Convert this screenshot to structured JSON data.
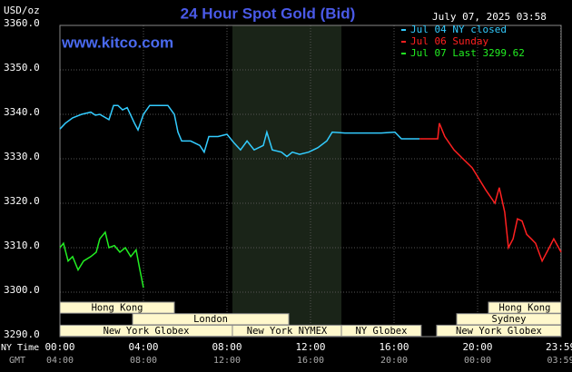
{
  "chart_data": {
    "type": "line",
    "title": "24 Hour Spot Gold (Bid)",
    "y_unit": "USD/oz",
    "timestamp": "July 07, 2025 03:58",
    "watermark": "www.kitco.com",
    "xlim": [
      0,
      24
    ],
    "ylim": [
      3290,
      3360
    ],
    "grid": true,
    "xticks": [
      {
        "value": 0,
        "label": "00:00"
      },
      {
        "value": 4,
        "label": "04:00"
      },
      {
        "value": 8,
        "label": "08:00"
      },
      {
        "value": 12,
        "label": "12:00"
      },
      {
        "value": 16,
        "label": "16:00"
      },
      {
        "value": 20,
        "label": "20:00"
      },
      {
        "value": 23.98,
        "label": "23:59"
      }
    ],
    "x_secondary_labels": [
      "04:00",
      "08:00",
      "12:00",
      "16:00",
      "20:00",
      "00:00",
      "03:59"
    ],
    "x_axis_labels": [
      "NY Time",
      "GMT"
    ],
    "yticks": [
      {
        "value": 3290,
        "label": "3290.0"
      },
      {
        "value": 3300,
        "label": "3300.0"
      },
      {
        "value": 3310,
        "label": "3310.0"
      },
      {
        "value": 3320,
        "label": "3320.0"
      },
      {
        "value": 3330,
        "label": "3330.0"
      },
      {
        "value": 3340,
        "label": "3340.0"
      },
      {
        "value": 3350,
        "label": "3350.0"
      },
      {
        "value": 3360,
        "label": "3360.0"
      }
    ],
    "session_rows": [
      [
        {
          "label": "Hong Kong",
          "start": 0,
          "end": 5.48
        },
        {
          "label": "Hong Kong",
          "start": 20.52,
          "end": 24
        }
      ],
      [
        {
          "label": "London",
          "start": 3.48,
          "end": 10.96
        },
        {
          "label": "Sydney",
          "start": 19,
          "end": 24
        }
      ],
      [
        {
          "label": "New York Globex",
          "start": 0,
          "end": 8.26
        },
        {
          "label": "New York NYMEX",
          "start": 8.26,
          "end": 13.48,
          "shaded": true
        },
        {
          "label": "NY Globex",
          "start": 13.48,
          "end": 17.3
        },
        {
          "label": "New York Globex",
          "start": 18.04,
          "end": 24
        }
      ]
    ],
    "series": [
      {
        "name": "Jul 04 NY closed",
        "color": "#33ccff",
        "x": [
          0,
          0.26,
          0.61,
          1.04,
          1.48,
          1.7,
          1.91,
          2.35,
          2.57,
          2.78,
          3,
          3.22,
          3.57,
          3.74,
          4,
          4.3,
          4.74,
          5.17,
          5.48,
          5.65,
          5.83,
          6.26,
          6.7,
          6.91,
          7.13,
          7.57,
          8,
          8.35,
          8.65,
          8.96,
          9.3,
          9.74,
          9.91,
          10.17,
          10.61,
          10.87,
          11.13,
          11.48,
          11.91,
          12.35,
          12.78,
          13.04,
          13.65,
          14.52,
          15.39,
          16.04,
          16.35,
          17.22
        ],
        "values": [
          3336.7,
          3338,
          3339.2,
          3340,
          3340.5,
          3339.8,
          3340,
          3338.8,
          3342,
          3342,
          3341,
          3341.5,
          3338,
          3336.5,
          3340,
          3342,
          3342,
          3342,
          3340,
          3336,
          3334,
          3334,
          3333,
          3331.5,
          3335,
          3335,
          3335.5,
          3333.5,
          3332,
          3334,
          3332,
          3333,
          3336,
          3332,
          3331.5,
          3330.5,
          3331.5,
          3331,
          3331.5,
          3332.5,
          3334,
          3336,
          3335.8,
          3335.8,
          3335.8,
          3336,
          3334.5,
          3334.5
        ]
      },
      {
        "name": "Jul 06 Sunday",
        "color": "#ff2020",
        "x": [
          17.22,
          18.09,
          18.17,
          18.43,
          18.87,
          19.3,
          19.74,
          20,
          20.39,
          20.83,
          21.04,
          21.3,
          21.48,
          21.7,
          21.91,
          22.13,
          22.35,
          22.57,
          22.78,
          23.09,
          23.43,
          23.65,
          24
        ],
        "values": [
          3334.5,
          3334.5,
          3338,
          3335,
          3332,
          3330,
          3328,
          3326,
          3323,
          3320,
          3323.5,
          3318,
          3310,
          3312,
          3316.5,
          3316,
          3313,
          3312,
          3311,
          3307,
          3310,
          3312,
          3309
        ]
      },
      {
        "name": "Jul 07 Last 3299.62",
        "color": "#22ee22",
        "x": [
          0,
          0.17,
          0.39,
          0.61,
          0.87,
          1.13,
          1.48,
          1.74,
          1.91,
          2.17,
          2.35,
          2.61,
          2.87,
          3.13,
          3.39,
          3.65,
          3.83,
          4
        ],
        "values": [
          3310,
          3311,
          3307,
          3308,
          3305,
          3307,
          3308,
          3309,
          3312,
          3313.5,
          3310,
          3310.5,
          3309,
          3310,
          3308,
          3309.5,
          3305,
          3301
        ]
      }
    ]
  }
}
